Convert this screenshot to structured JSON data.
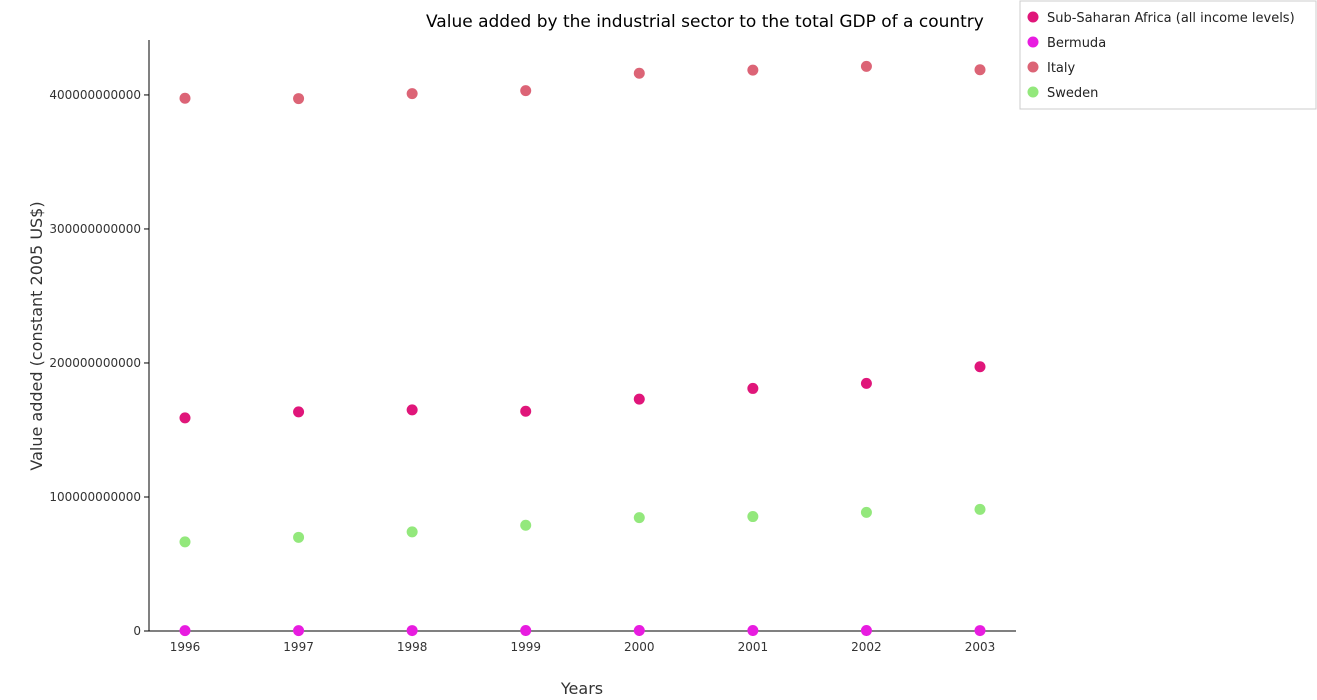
{
  "chart_data": {
    "type": "scatter",
    "title": "Value added by the industrial sector to the total GDP of a country",
    "xlabel": "Years",
    "ylabel": "Value added (constant 2005 US$)",
    "categories": [
      "1996",
      "1997",
      "1998",
      "1999",
      "2000",
      "2001",
      "2002",
      "2003"
    ],
    "ylim": [
      0,
      441000000000
    ],
    "yticks": [
      0,
      100000000000,
      200000000000,
      300000000000,
      400000000000
    ],
    "ytick_labels": [
      "0",
      "100000000000",
      "200000000000",
      "300000000000",
      "400000000000"
    ],
    "grid": false,
    "legend_position": "top-right",
    "series": [
      {
        "name": "Sub-Saharan Africa (all income levels)",
        "color": "#e0167a",
        "values": [
          159000000000,
          163500000000,
          165000000000,
          164000000000,
          173000000000,
          181000000000,
          184800000000,
          197200000000
        ]
      },
      {
        "name": "Bermuda",
        "color": "#e81ce0",
        "values": [
          300000000,
          310000000,
          320000000,
          330000000,
          340000000,
          335000000,
          330000000,
          325000000
        ]
      },
      {
        "name": "Italy",
        "color": "#dc6476",
        "values": [
          397500000000,
          397300000000,
          401000000000,
          403200000000,
          416200000000,
          418500000000,
          421300000000,
          418800000000
        ]
      },
      {
        "name": "Sweden",
        "color": "#93e87c",
        "values": [
          66500000000,
          69900000000,
          74000000000,
          78900000000,
          84600000000,
          85400000000,
          88500000000,
          90800000000
        ]
      }
    ]
  }
}
